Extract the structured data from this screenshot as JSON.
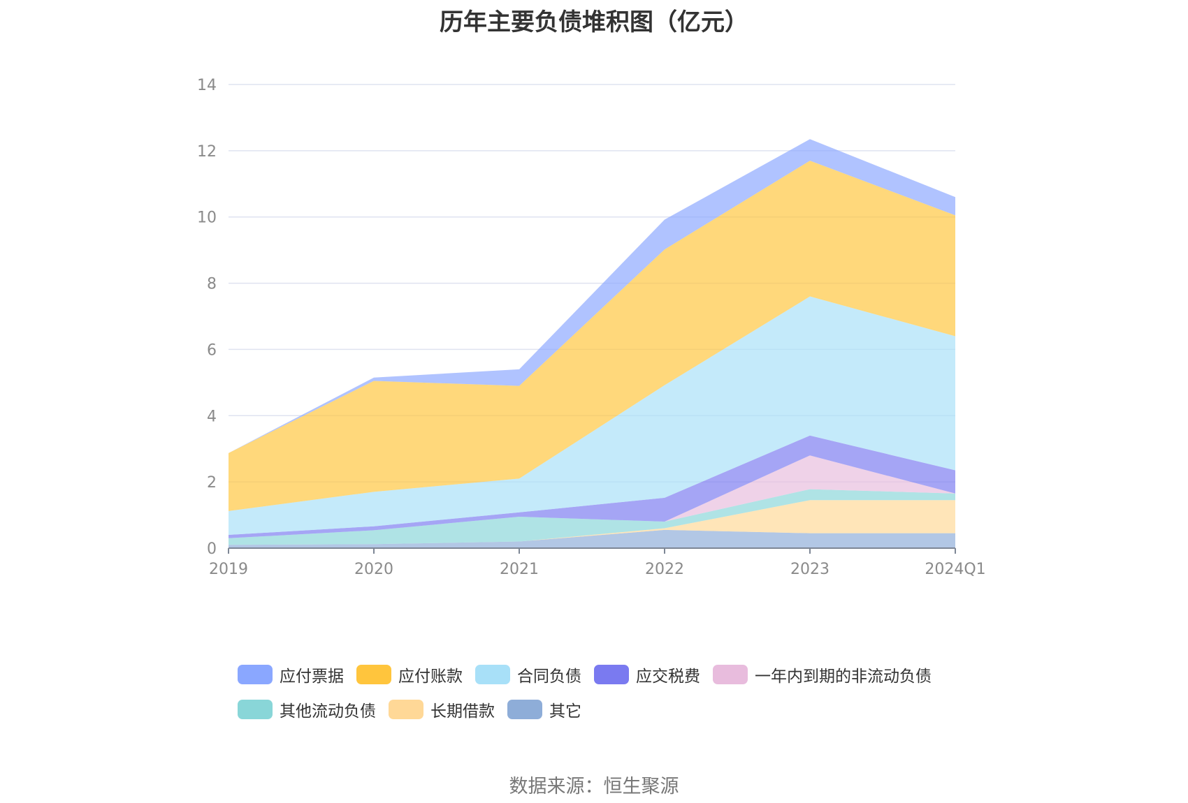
{
  "title": "历年主要负债堆积图（亿元）",
  "source": "数据来源：恒生聚源",
  "chart_data": {
    "type": "area",
    "stacked": true,
    "x": [
      "2019",
      "2020",
      "2021",
      "2022",
      "2023",
      "2024Q1"
    ],
    "ylim": [
      0,
      14
    ],
    "yticks": [
      0,
      2,
      4,
      6,
      8,
      10,
      12,
      14
    ],
    "grid": true,
    "legend_position": "bottom",
    "series": [
      {
        "name": "其它",
        "color": "#8eadd8",
        "values": [
          0.1,
          0.12,
          0.2,
          0.55,
          0.45,
          0.45
        ]
      },
      {
        "name": "长期借款",
        "color": "#ffd897",
        "values": [
          0.0,
          0.0,
          0.0,
          0.05,
          1.0,
          1.0
        ]
      },
      {
        "name": "其他流动负债",
        "color": "#89d6d8",
        "values": [
          0.2,
          0.42,
          0.75,
          0.2,
          0.33,
          0.2
        ]
      },
      {
        "name": "一年内到期的非流动负债",
        "color": "#e8bcdd",
        "values": [
          0.0,
          0.0,
          0.0,
          0.0,
          1.02,
          0.0
        ]
      },
      {
        "name": "应交税费",
        "color": "#7a7af0",
        "values": [
          0.1,
          0.12,
          0.13,
          0.72,
          0.6,
          0.7
        ]
      },
      {
        "name": "合同负债",
        "color": "#a8e0f8",
        "values": [
          0.72,
          1.04,
          1.02,
          3.4,
          4.2,
          4.05
        ]
      },
      {
        "name": "应付账款",
        "color": "#ffc53d",
        "values": [
          1.75,
          3.35,
          2.8,
          4.1,
          4.1,
          3.65
        ]
      },
      {
        "name": "应付票据",
        "color": "#8aa7ff",
        "values": [
          0.0,
          0.1,
          0.5,
          0.9,
          0.65,
          0.55
        ]
      }
    ],
    "legend_order": [
      "应付票据",
      "应付账款",
      "合同负债",
      "应交税费",
      "一年内到期的非流动负债",
      "其他流动负债",
      "长期借款",
      "其它"
    ]
  }
}
